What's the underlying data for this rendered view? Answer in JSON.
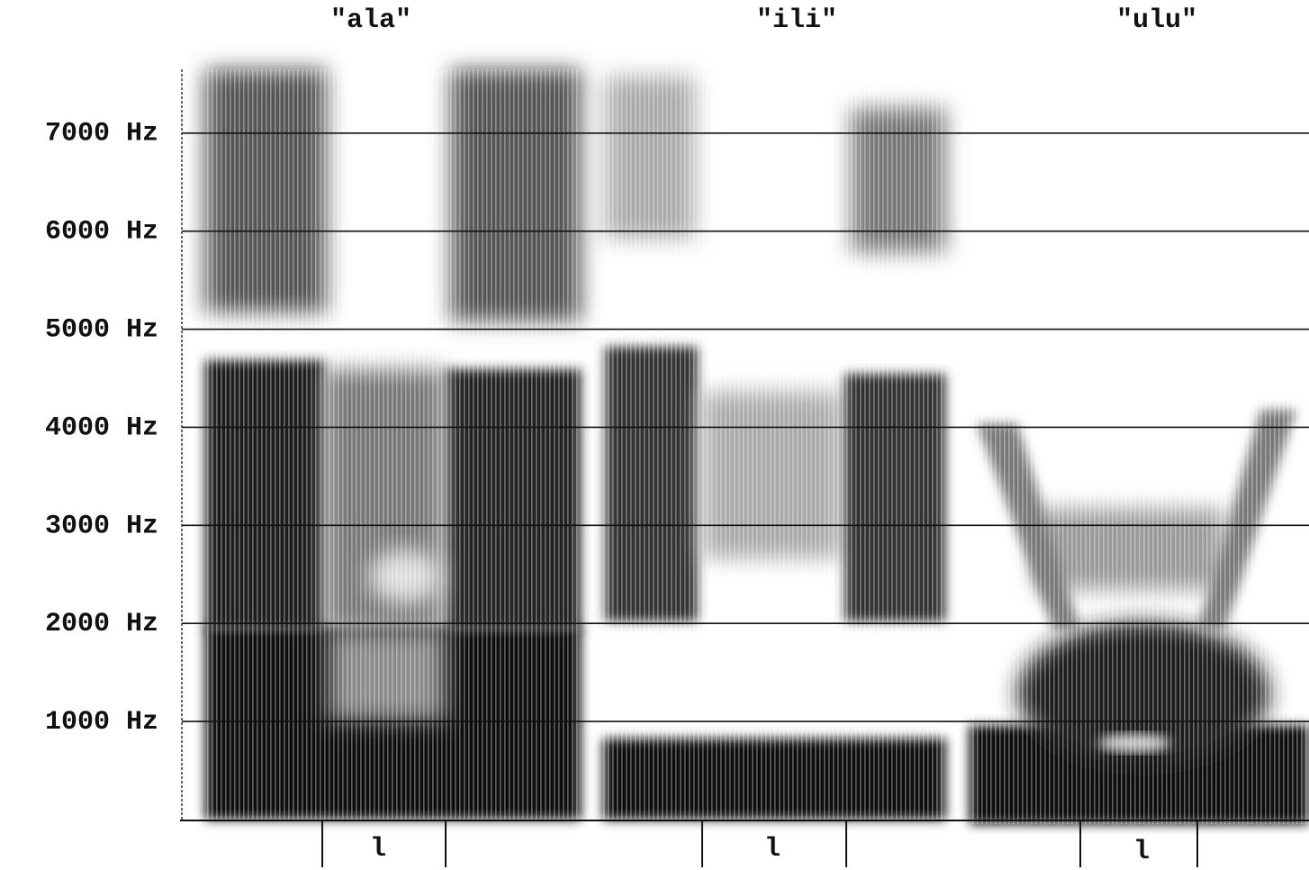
{
  "chart_data": {
    "type": "spectrogram",
    "panels": [
      {
        "title": "\"ala\"",
        "segment_label": "l"
      },
      {
        "title": "\"ili\"",
        "segment_label": "l"
      },
      {
        "title": "\"ulu\"",
        "segment_label": "l"
      }
    ],
    "ylim": [
      0,
      7650
    ],
    "yticks": [
      {
        "value": 1000,
        "label": "1000 Hz"
      },
      {
        "value": 2000,
        "label": "2000 Hz"
      },
      {
        "value": 3000,
        "label": "3000 Hz"
      },
      {
        "value": 4000,
        "label": "4000 Hz"
      },
      {
        "value": 5000,
        "label": "5000 Hz"
      },
      {
        "value": 6000,
        "label": "6000 Hz"
      },
      {
        "value": 7000,
        "label": "7000 Hz"
      }
    ],
    "grid": true
  }
}
